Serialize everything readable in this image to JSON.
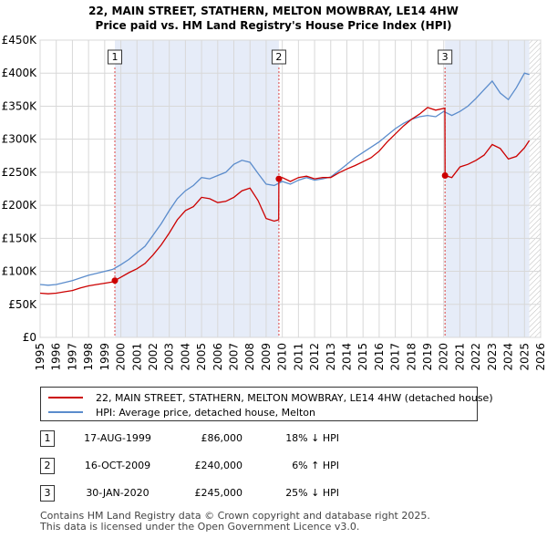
{
  "chart_data": {
    "type": "line",
    "title": "22, MAIN STREET, STATHERN, MELTON MOWBRAY, LE14 4HW",
    "subtitle": "Price paid vs. HM Land Registry's House Price Index (HPI)",
    "xlim": [
      1995,
      2026
    ],
    "ylim": [
      0,
      450000
    ],
    "x_ticks": [
      "1995",
      "1996",
      "1997",
      "1998",
      "1999",
      "2000",
      "2001",
      "2002",
      "2003",
      "2004",
      "2005",
      "2006",
      "2007",
      "2008",
      "2009",
      "2010",
      "2011",
      "2012",
      "2013",
      "2014",
      "2015",
      "2016",
      "2017",
      "2018",
      "2019",
      "2020",
      "2021",
      "2022",
      "2023",
      "2024",
      "2025",
      "2026"
    ],
    "y_ticks": [
      {
        "value": 0,
        "label": "£0"
      },
      {
        "value": 50000,
        "label": "£50K"
      },
      {
        "value": 100000,
        "label": "£100K"
      },
      {
        "value": 150000,
        "label": "£150K"
      },
      {
        "value": 200000,
        "label": "£200K"
      },
      {
        "value": 250000,
        "label": "£250K"
      },
      {
        "value": 300000,
        "label": "£300K"
      },
      {
        "value": 350000,
        "label": "£350K"
      },
      {
        "value": 400000,
        "label": "£400K"
      },
      {
        "value": 450000,
        "label": "£450K"
      }
    ],
    "grid": true,
    "shaded_ranges": [
      [
        1999.63,
        2009.79
      ],
      [
        2020.08,
        2025.3
      ]
    ],
    "hatched_from": 2025.3,
    "series": [
      {
        "name": "22, MAIN STREET, STATHERN, MELTON MOWBRAY, LE14 4HW (detached house)",
        "color": "#cc0000",
        "x": [
          1995.0,
          1995.5,
          1996.0,
          1996.5,
          1997.0,
          1997.5,
          1998.0,
          1998.5,
          1999.0,
          1999.5,
          1999.63,
          2000.0,
          2000.5,
          2001.0,
          2001.5,
          2002.0,
          2002.5,
          2003.0,
          2003.5,
          2004.0,
          2004.5,
          2005.0,
          2005.5,
          2006.0,
          2006.5,
          2007.0,
          2007.5,
          2008.0,
          2008.5,
          2009.0,
          2009.5,
          2009.78,
          2009.79,
          2010.0,
          2010.5,
          2011.0,
          2011.5,
          2012.0,
          2012.5,
          2013.0,
          2013.5,
          2014.0,
          2014.5,
          2015.0,
          2015.5,
          2016.0,
          2016.5,
          2017.0,
          2017.5,
          2018.0,
          2018.5,
          2019.0,
          2019.5,
          2020.07,
          2020.08,
          2020.5,
          2021.0,
          2021.5,
          2022.0,
          2022.5,
          2023.0,
          2023.5,
          2024.0,
          2024.5,
          2025.0,
          2025.3
        ],
        "y": [
          67000,
          66000,
          67000,
          69000,
          71000,
          75000,
          78000,
          80000,
          82000,
          84000,
          86000,
          91000,
          98000,
          104000,
          112000,
          125000,
          140000,
          158000,
          178000,
          192000,
          198000,
          212000,
          210000,
          204000,
          206000,
          212000,
          222000,
          226000,
          207000,
          180000,
          176000,
          178000,
          240000,
          242000,
          236000,
          242000,
          244000,
          240000,
          242000,
          242000,
          249000,
          255000,
          260000,
          266000,
          272000,
          282000,
          296000,
          308000,
          320000,
          330000,
          338000,
          348000,
          344000,
          347000,
          245000,
          242000,
          258000,
          262000,
          268000,
          276000,
          292000,
          286000,
          270000,
          274000,
          287000,
          298000
        ]
      },
      {
        "name": "HPI: Average price, detached house, Melton",
        "color": "#5b8ccc",
        "x": [
          1995.0,
          1995.5,
          1996.0,
          1996.5,
          1997.0,
          1997.5,
          1998.0,
          1998.5,
          1999.0,
          1999.5,
          2000.0,
          2000.5,
          2001.0,
          2001.5,
          2002.0,
          2002.5,
          2003.0,
          2003.5,
          2004.0,
          2004.5,
          2005.0,
          2005.5,
          2006.0,
          2006.5,
          2007.0,
          2007.5,
          2008.0,
          2008.5,
          2009.0,
          2009.5,
          2010.0,
          2010.5,
          2011.0,
          2011.5,
          2012.0,
          2012.5,
          2013.0,
          2013.5,
          2014.0,
          2014.5,
          2015.0,
          2015.5,
          2016.0,
          2016.5,
          2017.0,
          2017.5,
          2018.0,
          2018.5,
          2019.0,
          2019.5,
          2020.0,
          2020.5,
          2021.0,
          2021.5,
          2022.0,
          2022.5,
          2023.0,
          2023.5,
          2024.0,
          2024.5,
          2025.0,
          2025.3
        ],
        "y": [
          80000,
          79000,
          80000,
          83000,
          86000,
          90000,
          94000,
          97000,
          100000,
          103000,
          110000,
          118000,
          128000,
          138000,
          155000,
          172000,
          192000,
          210000,
          222000,
          230000,
          242000,
          240000,
          245000,
          250000,
          262000,
          268000,
          265000,
          248000,
          232000,
          230000,
          236000,
          232000,
          238000,
          242000,
          238000,
          240000,
          243000,
          252000,
          262000,
          272000,
          280000,
          288000,
          296000,
          306000,
          316000,
          324000,
          330000,
          334000,
          336000,
          334000,
          342000,
          336000,
          342000,
          350000,
          362000,
          375000,
          388000,
          370000,
          360000,
          378000,
          400000,
          398000
        ]
      }
    ],
    "markers": [
      {
        "label": "1",
        "x": 1999.63,
        "y": 86000
      },
      {
        "label": "2",
        "x": 2009.79,
        "y": 240000
      },
      {
        "label": "3",
        "x": 2020.08,
        "y": 245000
      }
    ]
  },
  "legend": [
    {
      "label": "22, MAIN STREET, STATHERN, MELTON MOWBRAY, LE14 4HW (detached house)",
      "color": "#cc0000"
    },
    {
      "label": "HPI: Average price, detached house, Melton",
      "color": "#5b8ccc"
    }
  ],
  "transactions": [
    {
      "num": "1",
      "date": "17-AUG-1999",
      "price": "£86,000",
      "hpi": "18% ↓ HPI"
    },
    {
      "num": "2",
      "date": "16-OCT-2009",
      "price": "£240,000",
      "hpi": "6% ↑ HPI"
    },
    {
      "num": "3",
      "date": "30-JAN-2020",
      "price": "£245,000",
      "hpi": "25% ↓ HPI"
    }
  ],
  "footer": {
    "line1": "Contains HM Land Registry data © Crown copyright and database right 2025.",
    "line2": "This data is licensed under the Open Government Licence v3.0."
  }
}
